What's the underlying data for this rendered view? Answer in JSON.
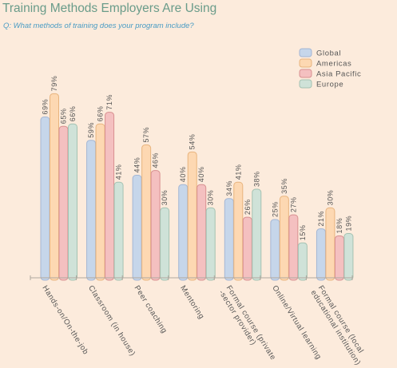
{
  "title": "Training Methods Employers Are Using",
  "subtitle": "Q: What methods of training does your program include?",
  "colors": {
    "background": "#fcebdc",
    "title": "#6a9c8a",
    "subtitle": "#4a9cc4",
    "axis": "#b0a89f"
  },
  "chart_data": {
    "type": "bar",
    "title": "Training Methods Employers Are Using",
    "subtitle": "Q: What methods of training does your program include?",
    "xlabel": "",
    "ylabel": "",
    "ylim": [
      0,
      100
    ],
    "grid": false,
    "legend_position": "top-right",
    "value_suffix": "%",
    "categories": [
      "Hands-on/On-the-job",
      "Classroom (in house)",
      "Peer coaching",
      "Mentoring",
      "Formal course (private-sector provider)",
      "Online/Virtual learning",
      "Formal course (local educational institution)"
    ],
    "category_lines": [
      [
        "Hands-on/On-the-job"
      ],
      [
        "Classroom (in house)"
      ],
      [
        "Peer coaching"
      ],
      [
        "Mentoring"
      ],
      [
        "Formal course (private",
        "-sector provider)"
      ],
      [
        "Online/Virtual learning"
      ],
      [
        "Formal course (local",
        "educational institution)"
      ]
    ],
    "series": [
      {
        "name": "Global",
        "color": "#c6d6ea",
        "stroke": "#a4b6d4",
        "values": [
          69,
          59,
          44,
          40,
          34,
          25,
          21
        ]
      },
      {
        "name": "Americas",
        "color": "#fdd8b2",
        "stroke": "#e8b47e",
        "values": [
          79,
          66,
          57,
          54,
          41,
          35,
          30
        ]
      },
      {
        "name": "Asia Pacific",
        "color": "#f4c0c0",
        "stroke": "#d89090",
        "values": [
          65,
          71,
          46,
          40,
          26,
          27,
          18
        ]
      },
      {
        "name": "Europe",
        "color": "#cfe2d8",
        "stroke": "#a4c2b2",
        "values": [
          66,
          41,
          30,
          30,
          38,
          15,
          19
        ]
      }
    ]
  }
}
